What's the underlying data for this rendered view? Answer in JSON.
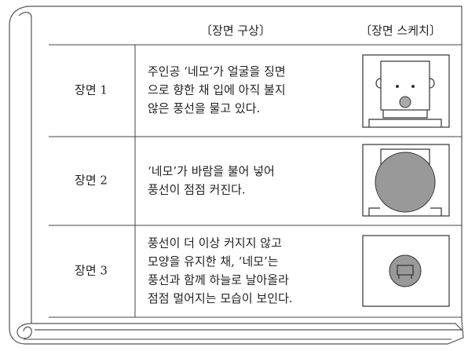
{
  "header": {
    "columns": [
      "〔장면 구상〕",
      "〔장면 스케치〕"
    ]
  },
  "table": {
    "rows": [
      {
        "label": "장면 1",
        "lines": [
          "주인공 ‘네모’가 얼굴을 징면",
          "으로 향한 채 입에 아직 불지",
          "않은 풍선을 물고 있다."
        ]
      },
      {
        "label": "장면 2",
        "lines": [
          "‘네모’가 바람을 불어 넣어",
          "풍선이 점점 커진다."
        ]
      },
      {
        "label": "장면 3",
        "lines": [
          "풍선이 더 이상 커지지 않고",
          "모양을 유지한 채, ‘네모’는",
          "풍선과 함께 하늘로 날아올라",
          "점점 멀어지는 모습이 보인다."
        ]
      }
    ]
  }
}
